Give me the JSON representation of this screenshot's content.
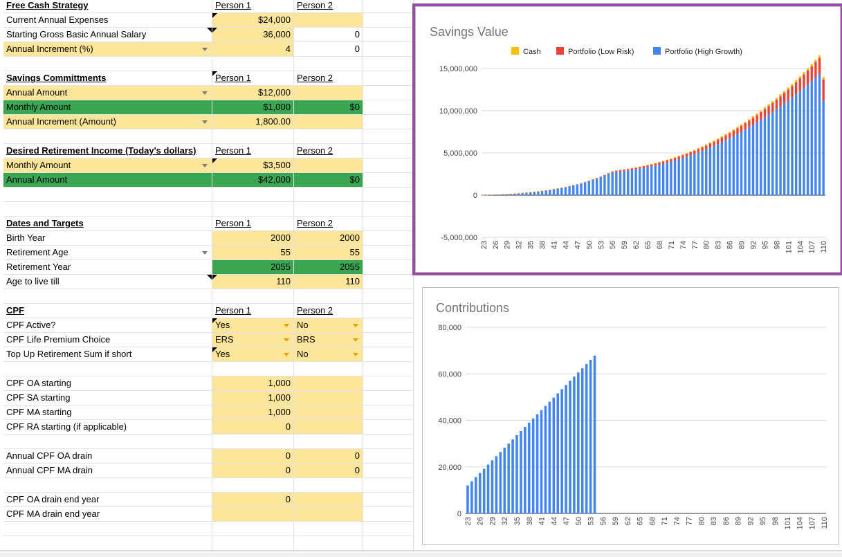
{
  "sheet": {
    "rows": [
      {
        "r": 0,
        "cells": [
          {
            "t": "Free Cash Strategy",
            "cls": "hdr"
          },
          {
            "t": "Person 1",
            "cls": "ph lft"
          },
          {
            "t": "Person 2",
            "cls": "ph lft"
          }
        ]
      },
      {
        "r": 1,
        "cells": [
          {
            "t": "Current Annual Expenses"
          },
          {
            "t": "$24,000",
            "cls": "y",
            "tri": true
          },
          {
            "t": "",
            "cls": "y"
          }
        ]
      },
      {
        "r": 2,
        "cells": [
          {
            "t": "Starting Gross Basic Annual Salary"
          },
          {
            "t": "36,000",
            "cls": "y",
            "tri": true
          },
          {
            "t": "0"
          }
        ],
        "tri0": true
      },
      {
        "r": 3,
        "cells": [
          {
            "t": "Annual Increment (%)",
            "cls": "y",
            "dd": true
          },
          {
            "t": "4",
            "cls": "y"
          },
          {
            "t": "0"
          }
        ]
      },
      {
        "r": 5,
        "cells": [
          {
            "t": "Savings Committments",
            "cls": "hdr"
          },
          {
            "t": "Person 1",
            "cls": "ph lft",
            "tri": true
          },
          {
            "t": "Person 2",
            "cls": "ph lft"
          }
        ]
      },
      {
        "r": 6,
        "cells": [
          {
            "t": "Annual Amount",
            "cls": "y",
            "dd": true
          },
          {
            "t": "$12,000",
            "cls": "y"
          },
          {
            "t": "",
            "cls": "y"
          }
        ]
      },
      {
        "r": 7,
        "cells": [
          {
            "t": "Monthly Amount",
            "cls": "g"
          },
          {
            "t": "$1,000",
            "cls": "g"
          },
          {
            "t": "$0",
            "cls": "g"
          }
        ]
      },
      {
        "r": 8,
        "cells": [
          {
            "t": "Annual Increment (Amount)",
            "cls": "y",
            "dd": true
          },
          {
            "t": "1,800.00",
            "cls": "y"
          },
          {
            "t": "",
            "cls": "y"
          }
        ]
      },
      {
        "r": 10,
        "cells": [
          {
            "t": "Desired Retirement Income (Today's dollars)",
            "cls": "hdr"
          },
          {
            "t": "Person 1",
            "cls": "ph lft"
          },
          {
            "t": "Person 2",
            "cls": "ph lft"
          }
        ]
      },
      {
        "r": 11,
        "cells": [
          {
            "t": "Monthly Amount",
            "cls": "y",
            "dd": true
          },
          {
            "t": "$3,500",
            "cls": "y",
            "tri": true
          },
          {
            "t": "",
            "cls": "y"
          }
        ]
      },
      {
        "r": 12,
        "cells": [
          {
            "t": "Annual Amount",
            "cls": "g"
          },
          {
            "t": "$42,000",
            "cls": "g"
          },
          {
            "t": "$0",
            "cls": "g"
          }
        ]
      },
      {
        "r": 15,
        "cells": [
          {
            "t": "Dates and Targets",
            "cls": "hdr"
          },
          {
            "t": "Person 1",
            "cls": "ph lft"
          },
          {
            "t": "Person 2",
            "cls": "ph lft"
          }
        ]
      },
      {
        "r": 16,
        "cells": [
          {
            "t": "Birth Year"
          },
          {
            "t": "2000",
            "cls": "y"
          },
          {
            "t": "2000",
            "cls": "y"
          }
        ]
      },
      {
        "r": 17,
        "cells": [
          {
            "t": "Retirement Age",
            "dd": true
          },
          {
            "t": "55",
            "cls": "y"
          },
          {
            "t": "55",
            "cls": "y"
          }
        ]
      },
      {
        "r": 18,
        "cells": [
          {
            "t": "Retirement Year"
          },
          {
            "t": "2055",
            "cls": "g"
          },
          {
            "t": "2055",
            "cls": "g"
          }
        ]
      },
      {
        "r": 19,
        "cells": [
          {
            "t": "Age to live till"
          },
          {
            "t": "110",
            "cls": "y",
            "tri": true
          },
          {
            "t": "110",
            "cls": "y"
          }
        ],
        "tri0": true
      },
      {
        "r": 21,
        "cells": [
          {
            "t": "CPF",
            "cls": "hdr"
          },
          {
            "t": "Person 1",
            "cls": "ph lft"
          },
          {
            "t": "Person 2",
            "cls": "ph lft"
          }
        ]
      },
      {
        "r": 22,
        "cells": [
          {
            "t": "CPF Active?"
          },
          {
            "t": "Yes",
            "cls": "y lft",
            "dd": true,
            "tri": true
          },
          {
            "t": "No",
            "cls": "y lft",
            "dd": true
          }
        ]
      },
      {
        "r": 23,
        "cells": [
          {
            "t": "CPF Life Premium Choice"
          },
          {
            "t": "ERS",
            "cls": "y lft",
            "dd": true
          },
          {
            "t": "BRS",
            "cls": "y lft",
            "dd": true
          }
        ]
      },
      {
        "r": 24,
        "cells": [
          {
            "t": "Top Up Retirement Sum if short"
          },
          {
            "t": "Yes",
            "cls": "y lft",
            "dd": true,
            "tri": true
          },
          {
            "t": "No",
            "cls": "y lft",
            "dd": true
          }
        ]
      },
      {
        "r": 26,
        "cells": [
          {
            "t": "CPF OA starting"
          },
          {
            "t": "1,000",
            "cls": "y"
          },
          {
            "t": "",
            "cls": "y"
          }
        ]
      },
      {
        "r": 27,
        "cells": [
          {
            "t": "CPF SA starting"
          },
          {
            "t": "1,000",
            "cls": "y"
          },
          {
            "t": "",
            "cls": "y"
          }
        ]
      },
      {
        "r": 28,
        "cells": [
          {
            "t": "CPF MA starting"
          },
          {
            "t": "1,000",
            "cls": "y"
          },
          {
            "t": "",
            "cls": "y"
          }
        ]
      },
      {
        "r": 29,
        "cells": [
          {
            "t": "CPF RA starting (if applicable)"
          },
          {
            "t": "0",
            "cls": "y"
          },
          {
            "t": "",
            "cls": "y"
          }
        ]
      },
      {
        "r": 31,
        "cells": [
          {
            "t": "Annual CPF OA drain"
          },
          {
            "t": "0",
            "cls": "y"
          },
          {
            "t": "0",
            "cls": "y"
          }
        ]
      },
      {
        "r": 32,
        "cells": [
          {
            "t": "Annual CPF MA drain"
          },
          {
            "t": "0",
            "cls": "y"
          },
          {
            "t": "0",
            "cls": "y"
          }
        ]
      },
      {
        "r": 34,
        "cells": [
          {
            "t": "CPF OA drain end year"
          },
          {
            "t": "0",
            "cls": "y"
          },
          {
            "t": "",
            "cls": "y"
          }
        ]
      },
      {
        "r": 35,
        "cells": [
          {
            "t": "CPF MA drain end year"
          },
          {
            "t": "",
            "cls": "y"
          },
          {
            "t": "",
            "cls": "y"
          }
        ]
      }
    ]
  },
  "chart_data": [
    {
      "type": "bar",
      "stacked": true,
      "title": "Savings Value",
      "legend_position": "top",
      "ylim": [
        -5000000,
        15000000
      ],
      "y_ticks": [
        "15,000,000",
        "10,000,000",
        "5,000,000",
        "0",
        "-5,000,000"
      ],
      "y_tick_values": [
        15000000,
        10000000,
        5000000,
        0,
        -5000000
      ],
      "x_start": 23,
      "x_end": 110,
      "x_tick_labels": [
        "23",
        "26",
        "29",
        "32",
        "35",
        "38",
        "41",
        "44",
        "47",
        "50",
        "53",
        "56",
        "59",
        "62",
        "65",
        "68",
        "71",
        "74",
        "77",
        "80",
        "83",
        "86",
        "89",
        "92",
        "95",
        "98",
        "101",
        "104",
        "107",
        "110"
      ],
      "series": [
        {
          "name": "Cash",
          "color": "#fbbc04",
          "values": [
            3000,
            3600,
            4200,
            4800,
            5400,
            6000,
            6600,
            7200,
            7800,
            8400,
            9000,
            9600,
            10200,
            10800,
            11400,
            12000,
            12600,
            13200,
            13800,
            14400,
            15000,
            15600,
            16200,
            16800,
            17400,
            18000,
            18600,
            19200,
            19800,
            20400,
            21000,
            21600,
            22200,
            24000,
            28000,
            32000,
            36000,
            40000,
            44000,
            48000,
            52000,
            56000,
            60000,
            64000,
            68000,
            72000,
            76000,
            80000,
            84000,
            88000,
            92000,
            96000,
            100000,
            104000,
            108000,
            112000,
            116000,
            120000,
            125000,
            130000,
            135000,
            140000,
            145000,
            150000,
            156000,
            162000,
            168000,
            174000,
            180000,
            186000,
            192000,
            198000,
            204000,
            210000,
            216000,
            222000,
            228000,
            234000,
            240000,
            246000,
            252000,
            258000,
            264000,
            270000,
            276000,
            282000,
            290000,
            300000
          ]
        },
        {
          "name": "Portfolio (Low Risk)",
          "color": "#ea4335",
          "values": [
            0,
            500,
            1000,
            2000,
            3000,
            4000,
            5000,
            6500,
            8000,
            9500,
            11000,
            12500,
            14000,
            16000,
            18000,
            20000,
            22000,
            24000,
            26000,
            28500,
            31000,
            33500,
            36000,
            38500,
            41000,
            43500,
            46000,
            49000,
            52000,
            55000,
            58000,
            61000,
            64000,
            105000,
            150000,
            158000,
            166000,
            175000,
            184000,
            193000,
            203000,
            213000,
            224000,
            235000,
            247000,
            259000,
            272000,
            286000,
            300000,
            315000,
            331000,
            347000,
            364000,
            382000,
            401000,
            421000,
            442000,
            464000,
            487000,
            511000,
            537000,
            564000,
            592000,
            622000,
            653000,
            686000,
            720000,
            756000,
            794000,
            834000,
            876000,
            920000,
            966000,
            1014000,
            1065000,
            1118000,
            1174000,
            1233000,
            1295000,
            1360000,
            1428000,
            1499000,
            1574000,
            1653000,
            1736000,
            1823000,
            1914000,
            2500000
          ]
        },
        {
          "name": "Portfolio (High Growth)",
          "color": "#4285f4",
          "values": [
            12000,
            25000,
            40000,
            57000,
            76000,
            98000,
            122000,
            149000,
            179000,
            212000,
            248000,
            288000,
            331000,
            378000,
            430000,
            486000,
            547000,
            613000,
            685000,
            763000,
            847000,
            938000,
            1036000,
            1142000,
            1256000,
            1379000,
            1511000,
            1653000,
            1806000,
            1970000,
            2146000,
            2335000,
            2538000,
            2700000,
            2750000,
            2800000,
            2860000,
            2920000,
            2990000,
            3060000,
            3140000,
            3220000,
            3310000,
            3400000,
            3500000,
            3610000,
            3720000,
            3840000,
            3970000,
            4100000,
            4240000,
            4390000,
            4540000,
            4700000,
            4870000,
            5050000,
            5230000,
            5420000,
            5620000,
            5830000,
            6050000,
            6270000,
            6500000,
            6740000,
            6990000,
            7240000,
            7500000,
            7770000,
            8050000,
            8330000,
            8620000,
            8920000,
            9230000,
            9540000,
            9860000,
            10190000,
            10530000,
            10870000,
            11220000,
            11580000,
            11950000,
            12330000,
            12720000,
            13110000,
            13520000,
            13930000,
            14350000,
            11200000
          ]
        }
      ]
    },
    {
      "type": "bar",
      "title": "Contributions",
      "ylim": [
        0,
        80000
      ],
      "y_ticks": [
        "80,000",
        "60,000",
        "40,000",
        "20,000",
        "0"
      ],
      "y_tick_values": [
        80000,
        60000,
        40000,
        20000,
        0
      ],
      "x_start": 23,
      "x_end": 110,
      "x_tick_labels": [
        "23",
        "26",
        "29",
        "32",
        "35",
        "38",
        "41",
        "44",
        "47",
        "50",
        "53",
        "56",
        "59",
        "62",
        "65",
        "68",
        "71",
        "74",
        "77",
        "80",
        "83",
        "86",
        "89",
        "92",
        "95",
        "98",
        "101",
        "104",
        "107",
        "110"
      ],
      "series": [
        {
          "name": "",
          "color": "#4285f4",
          "values": [
            12000,
            13800,
            15600,
            17400,
            19200,
            21000,
            22800,
            24600,
            26400,
            28200,
            30000,
            31800,
            33600,
            35400,
            37200,
            39000,
            40800,
            42600,
            44400,
            46200,
            48000,
            49800,
            51600,
            53400,
            55200,
            57000,
            58800,
            60600,
            62400,
            64200,
            66000,
            67800,
            0,
            0,
            0,
            0,
            0,
            0,
            0,
            0,
            0,
            0,
            0,
            0,
            0,
            0,
            0,
            0,
            0,
            0,
            0,
            0,
            0,
            0,
            0,
            0,
            0,
            0,
            0,
            0,
            0,
            0,
            0,
            0,
            0,
            0,
            0,
            0,
            0,
            0,
            0,
            0,
            0,
            0,
            0,
            0,
            0,
            0,
            0,
            0,
            0,
            0,
            0,
            0,
            0,
            0,
            0,
            0
          ]
        }
      ]
    }
  ]
}
